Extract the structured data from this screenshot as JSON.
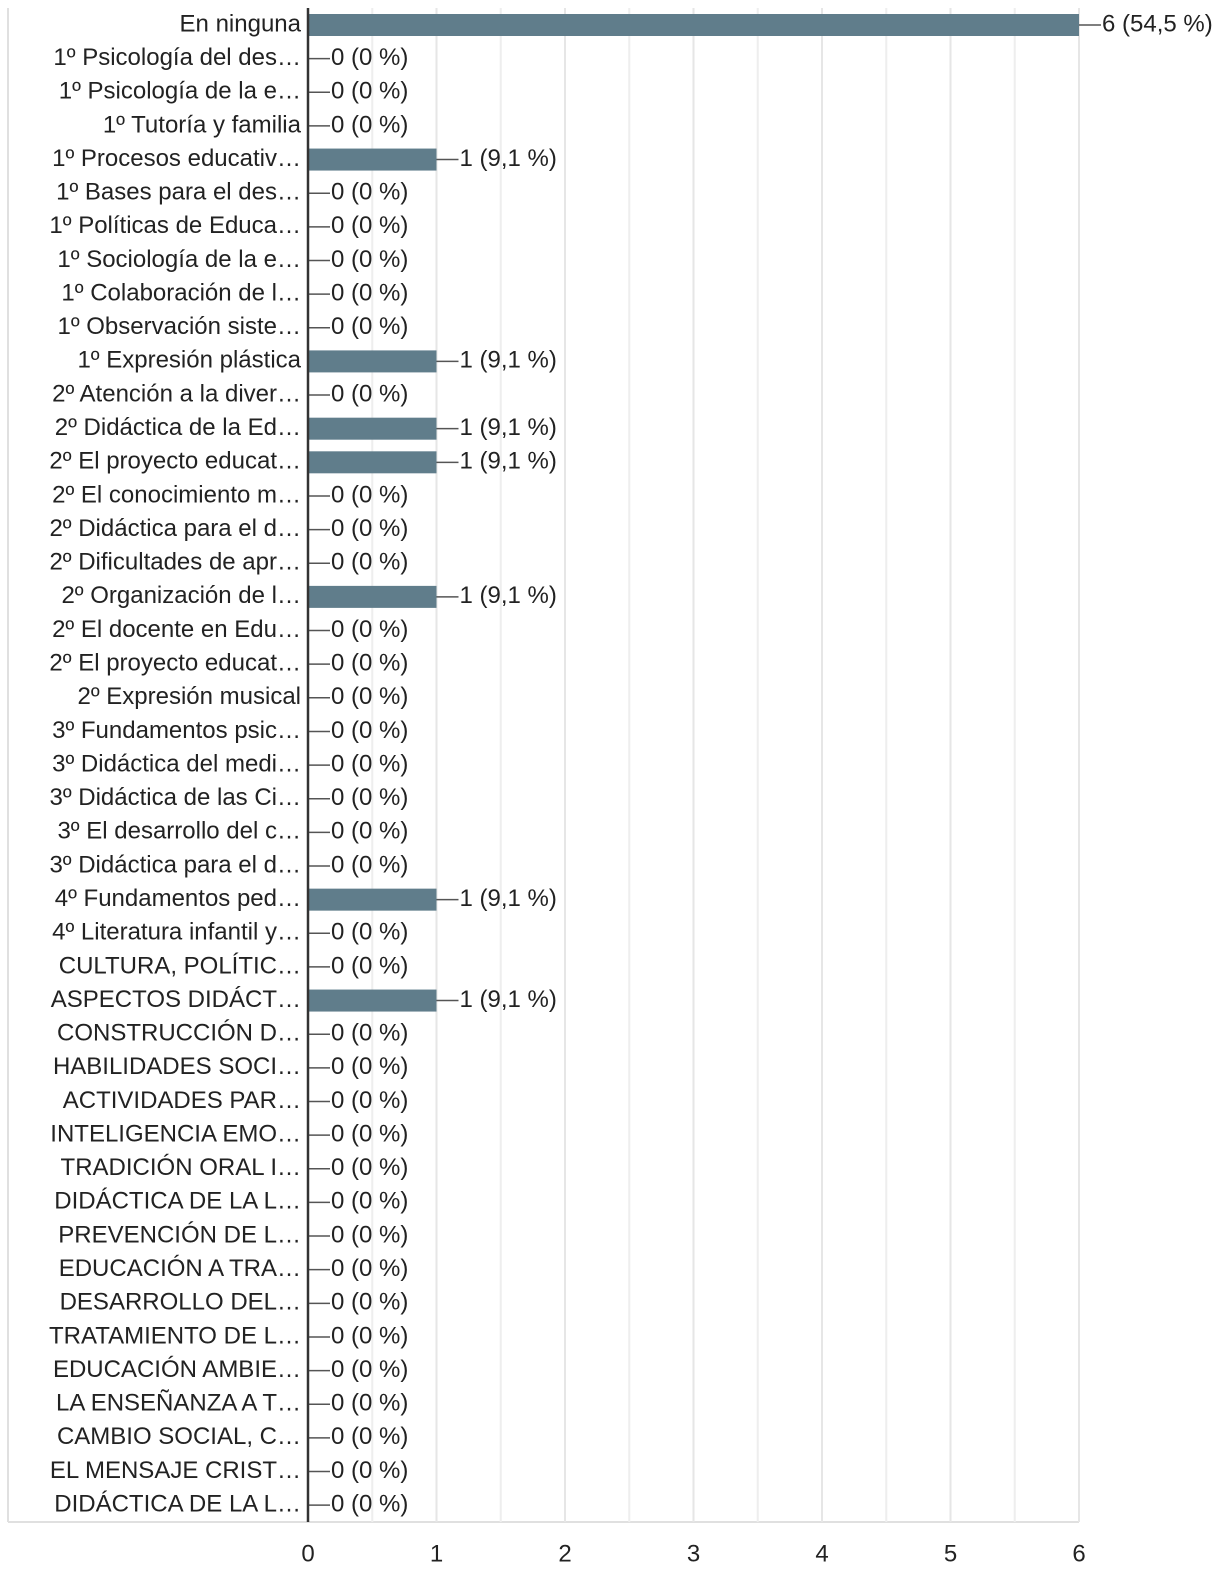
{
  "chart_data": {
    "type": "hbar",
    "categories": [
      "En ninguna",
      "1º Psicología del des…",
      "1º Psicología de la e…",
      "1º Tutoría y familia",
      "1º Procesos educativ…",
      "1º Bases para el des…",
      "1º Políticas de Educa…",
      "1º Sociología de la e…",
      "1º Colaboración de l…",
      "1º Observación siste…",
      "1º Expresión plástica",
      "2º Atención a la diver…",
      "2º Didáctica de la Ed…",
      "2º El proyecto educat…",
      "2º El conocimiento m…",
      "2º Didáctica para el d…",
      "2º Dificultades de apr…",
      "2º Organización de l…",
      "2º El docente en Edu…",
      "2º El proyecto educat…",
      "2º Expresión musical",
      "3º Fundamentos psic…",
      "3º Didáctica del medi…",
      "3º Didáctica de las Ci…",
      "3º El desarrollo del c…",
      "3º Didáctica para el d…",
      "4º Fundamentos ped…",
      "4º Literatura infantil y…",
      "CULTURA, POLÍTIC…",
      "ASPECTOS DIDÁCT…",
      "CONSTRUCCIÓN D…",
      "HABILIDADES SOCI…",
      "ACTIVIDADES PAR…",
      "INTELIGENCIA EMO…",
      "TRADICIÓN ORAL I…",
      "DIDÁCTICA DE LA L…",
      "PREVENCIÓN DE L…",
      "EDUCACIÓN A TRA…",
      "DESARROLLO DEL…",
      "TRATAMIENTO DE L…",
      "EDUCACIÓN AMBIE…",
      "LA ENSEÑANZA A T…",
      "CAMBIO SOCIAL, C…",
      "EL MENSAJE CRIST…",
      "DIDÁCTICA DE LA L…"
    ],
    "values": [
      6,
      0,
      0,
      0,
      1,
      0,
      0,
      0,
      0,
      0,
      1,
      0,
      1,
      1,
      0,
      0,
      0,
      1,
      0,
      0,
      0,
      0,
      0,
      0,
      0,
      0,
      1,
      0,
      0,
      1,
      0,
      0,
      0,
      0,
      0,
      0,
      0,
      0,
      0,
      0,
      0,
      0,
      0,
      0,
      0
    ],
    "value_labels": [
      "6 (54,5 %)",
      "0 (0 %)",
      "0 (0 %)",
      "0 (0 %)",
      "1 (9,1 %)",
      "0 (0 %)",
      "0 (0 %)",
      "0 (0 %)",
      "0 (0 %)",
      "0 (0 %)",
      "1 (9,1 %)",
      "0 (0 %)",
      "1 (9,1 %)",
      "1 (9,1 %)",
      "0 (0 %)",
      "0 (0 %)",
      "0 (0 %)",
      "1 (9,1 %)",
      "0 (0 %)",
      "0 (0 %)",
      "0 (0 %)",
      "0 (0 %)",
      "0 (0 %)",
      "0 (0 %)",
      "0 (0 %)",
      "0 (0 %)",
      "1 (9,1 %)",
      "0 (0 %)",
      "0 (0 %)",
      "1 (9,1 %)",
      "0 (0 %)",
      "0 (0 %)",
      "0 (0 %)",
      "0 (0 %)",
      "0 (0 %)",
      "0 (0 %)",
      "0 (0 %)",
      "0 (0 %)",
      "0 (0 %)",
      "0 (0 %)",
      "0 (0 %)",
      "0 (0 %)",
      "0 (0 %)",
      "0 (0 %)",
      "0 (0 %)"
    ],
    "color": "#607d8b",
    "xlim": [
      0,
      6
    ],
    "xticks": [
      0,
      1,
      2,
      3,
      4,
      5,
      6
    ],
    "xminor": [
      0.5,
      1.5,
      2.5,
      3.5,
      4.5,
      5.5
    ],
    "grid": true
  }
}
